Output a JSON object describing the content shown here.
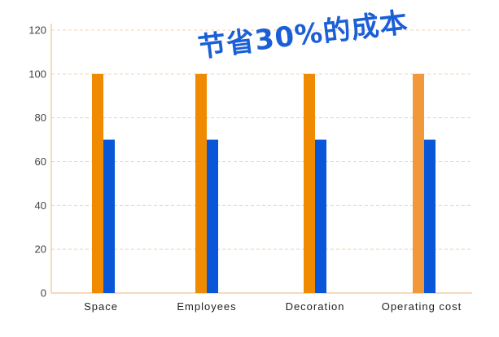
{
  "chart_data": {
    "type": "bar",
    "title": "节省30%的成本",
    "categories": [
      "Space",
      "Employees",
      "Decoration",
      "Operating  cost"
    ],
    "series": [
      {
        "values": [
          100,
          100,
          100,
          100
        ],
        "color": "#f08a00",
        "point_colors": [
          "#f08a00",
          "#f08a00",
          "#f08a00",
          "#f0983a"
        ]
      },
      {
        "values": [
          70,
          70,
          70,
          70
        ],
        "color": "#0a56d8"
      }
    ],
    "ylim": [
      0,
      120
    ],
    "yticks": [
      0,
      20,
      40,
      60,
      80,
      100,
      120
    ],
    "xlabel": "",
    "ylabel": "",
    "grid": true,
    "grid_style": "dashed",
    "grid_color": "#f3d3b8",
    "axis_color": "#f2b37a",
    "legend": "none"
  }
}
